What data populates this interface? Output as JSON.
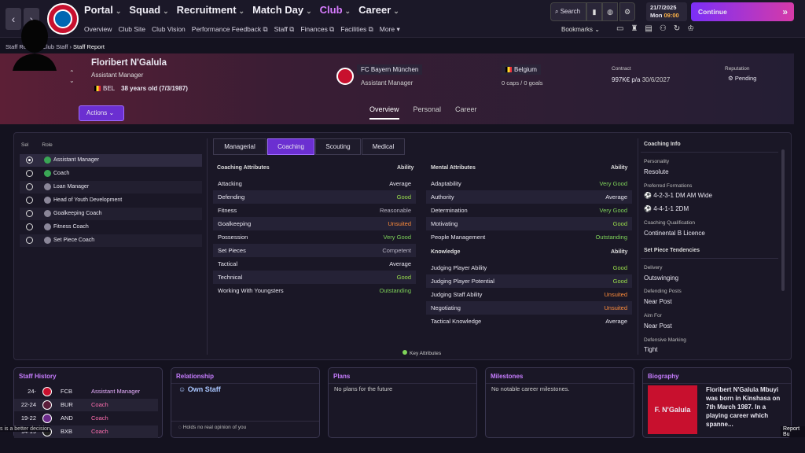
{
  "nav": {
    "back": "‹",
    "forward": "›",
    "main": [
      {
        "label": "Portal",
        "active": false
      },
      {
        "label": "Squad",
        "active": false
      },
      {
        "label": "Recruitment",
        "active": false
      },
      {
        "label": "Match Day",
        "active": false
      },
      {
        "label": "Club",
        "active": true
      },
      {
        "label": "Career",
        "active": false
      }
    ],
    "sub": [
      "Overview",
      "Club Site",
      "Club Vision",
      "Performance Feedback ⧉",
      "Staff ⧉",
      "Finances ⧉",
      "Facilities ⧉",
      "More ▾"
    ],
    "search_label": "Search",
    "date": "21/7/2025",
    "day": "Mon",
    "time": "09:00",
    "continue_label": "Continue",
    "bookmarks_label": "Bookmarks"
  },
  "breadcrumb": {
    "a": "Staff Report",
    "b": "Club Staff",
    "c": "Staff Report"
  },
  "person": {
    "name": "Floribert N'Galula",
    "role": "Assistant Manager",
    "nationality_code": "BEL",
    "age": "38 years old (7/3/1987)",
    "club": "FC Bayern München",
    "club_role": "Assistant Manager",
    "country": "Belgium",
    "caps": "0 caps / 0 goals",
    "contract_label": "Contract",
    "contract_wage": "997K€ p/a",
    "contract_date": "30/6/2027",
    "reputation_label": "Reputation",
    "reputation": "Pending",
    "actions_label": "Actions"
  },
  "profile_tabs": [
    {
      "label": "Overview",
      "active": true
    },
    {
      "label": "Personal",
      "active": false
    },
    {
      "label": "Career",
      "active": false
    }
  ],
  "roles": {
    "hd_sel": "Sel",
    "hd_role": "Role",
    "items": [
      {
        "label": "Assistant Manager",
        "selected": true
      },
      {
        "label": "Coach",
        "selected": false
      },
      {
        "label": "Loan Manager",
        "selected": false
      },
      {
        "label": "Head of Youth Development",
        "selected": false
      },
      {
        "label": "Goalkeeping Coach",
        "selected": false
      },
      {
        "label": "Fitness Coach",
        "selected": false
      },
      {
        "label": "Set Piece Coach",
        "selected": false
      }
    ]
  },
  "category_tabs": [
    {
      "label": "Managerial",
      "active": false
    },
    {
      "label": "Coaching",
      "active": true
    },
    {
      "label": "Scouting",
      "active": false
    },
    {
      "label": "Medical",
      "active": false
    }
  ],
  "coaching": {
    "header": "Coaching Attributes",
    "ability": "Ability",
    "rows": [
      {
        "name": "Attacking",
        "value": "Average",
        "cls": "c-avg"
      },
      {
        "name": "Defending",
        "value": "Good",
        "cls": "c-good"
      },
      {
        "name": "Fitness",
        "value": "Reasonable",
        "cls": "c-comp"
      },
      {
        "name": "Goalkeeping",
        "value": "Unsuited",
        "cls": "c-bad"
      },
      {
        "name": "Possession",
        "value": "Very Good",
        "cls": "c-vgood"
      },
      {
        "name": "Set Pieces",
        "value": "Competent",
        "cls": "c-comp"
      },
      {
        "name": "Tactical",
        "value": "Average",
        "cls": "c-avg"
      },
      {
        "name": "Technical",
        "value": "Good",
        "cls": "c-good"
      },
      {
        "name": "Working With Youngsters",
        "value": "Outstanding",
        "cls": "c-vgood"
      }
    ]
  },
  "mental": {
    "header": "Mental Attributes",
    "ability": "Ability",
    "rows": [
      {
        "name": "Adaptability",
        "value": "Very Good",
        "cls": "c-vgood"
      },
      {
        "name": "Authority",
        "value": "Average",
        "cls": "c-avg"
      },
      {
        "name": "Determination",
        "value": "Very Good",
        "cls": "c-vgood"
      },
      {
        "name": "Motivating",
        "value": "Good",
        "cls": "c-good"
      },
      {
        "name": "People Management",
        "value": "Outstanding",
        "cls": "c-vgood"
      }
    ]
  },
  "knowledge": {
    "header": "Knowledge",
    "ability": "Ability",
    "rows": [
      {
        "name": "Judging Player Ability",
        "value": "Good",
        "cls": "c-good"
      },
      {
        "name": "Judging Player Potential",
        "value": "Good",
        "cls": "c-good"
      },
      {
        "name": "Judging Staff Ability",
        "value": "Unsuited",
        "cls": "c-bad"
      },
      {
        "name": "Negotiating",
        "value": "Unsuited",
        "cls": "c-bad"
      },
      {
        "name": "Tactical Knowledge",
        "value": "Average",
        "cls": "c-avg"
      }
    ]
  },
  "key_attributes": "Key Attributes",
  "info": {
    "title": "Coaching Info",
    "personality_l": "Personality",
    "personality": "Resolute",
    "formations_l": "Preferred Formations",
    "formation1": "4-2-3-1 DM AM Wide",
    "formation2": "4-4-1-1 2DM",
    "qual_l": "Coaching Qualification",
    "qual": "Continental B Licence",
    "setpiece_title": "Set Piece Tendencies",
    "delivery_l": "Delivery",
    "delivery": "Outswinging",
    "defposts_l": "Defending Posts",
    "defposts": "Near Post",
    "aimfor_l": "Aim For",
    "aimfor": "Near Post",
    "defmark_l": "Defensive Marking",
    "defmark": "Tight"
  },
  "staff_history": {
    "title": "Staff History",
    "rows": [
      {
        "years": "24-",
        "club": "FCB",
        "role": "Assistant Manager"
      },
      {
        "years": "22-24",
        "club": "BUR",
        "role": "Coach"
      },
      {
        "years": "19-22",
        "club": "AND",
        "role": "Coach"
      },
      {
        "years": "14-19",
        "club": "BXB",
        "role": "Coach"
      }
    ]
  },
  "relationship": {
    "title": "Relationship",
    "value": "Own Staff",
    "note": "Holds no real opinion of you"
  },
  "plans": {
    "title": "Plans",
    "text": "No plans for the future"
  },
  "milestones": {
    "title": "Milestones",
    "text": "No notable career milestones."
  },
  "biography": {
    "title": "Biography",
    "image_text": "F. N'Galula",
    "text": "Floribert N'Galula Mbuyi was born in Kinshasa on 7th March 1987. In a playing career which spanne..."
  },
  "tooltip": "s is a better decision",
  "report_button": "Report Bu"
}
